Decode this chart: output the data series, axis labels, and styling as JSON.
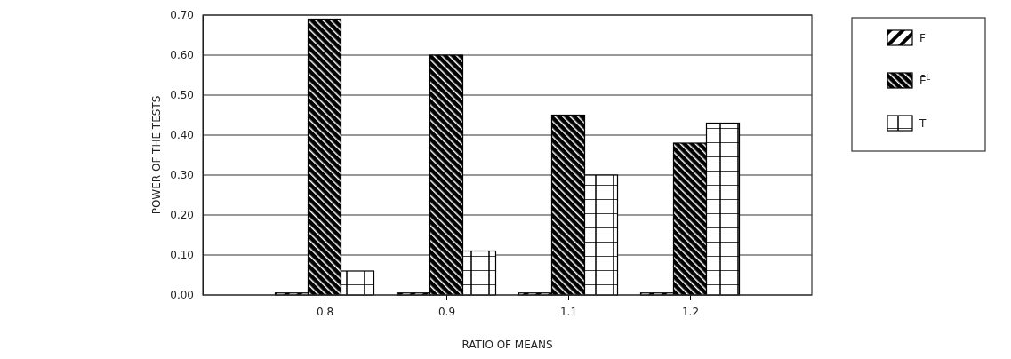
{
  "chart_data": {
    "type": "bar",
    "xlabel": "RATIO OF MEANS",
    "ylabel": "POWER OF THE TESTS",
    "categories": [
      "0.8",
      "0.9",
      "1.1",
      "1.2"
    ],
    "series": [
      {
        "name": "F",
        "color": "#000000",
        "values": [
          0.005,
          0.005,
          0.005,
          0.005
        ]
      },
      {
        "name": "Ē$^{L}$",
        "color": "#000000",
        "values": [
          0.69,
          0.6,
          0.45,
          0.38
        ]
      },
      {
        "name": "T",
        "color": "#000000",
        "values": [
          0.06,
          0.11,
          0.3,
          0.43
        ]
      }
    ],
    "ylim": [
      0,
      0.7
    ],
    "yticks": [
      {
        "value": 0,
        "label": "0.00"
      },
      {
        "value": 0.1,
        "label": "0.10"
      },
      {
        "value": 0.2,
        "label": "0.20"
      },
      {
        "value": 0.3,
        "label": "0.30"
      },
      {
        "value": 0.4,
        "label": "0.40"
      },
      {
        "value": 0.5,
        "label": "0.50"
      },
      {
        "value": 0.6,
        "label": "0.60"
      },
      {
        "value": 0.7,
        "label": "0.70"
      }
    ],
    "grid": "y",
    "legend": "right"
  }
}
